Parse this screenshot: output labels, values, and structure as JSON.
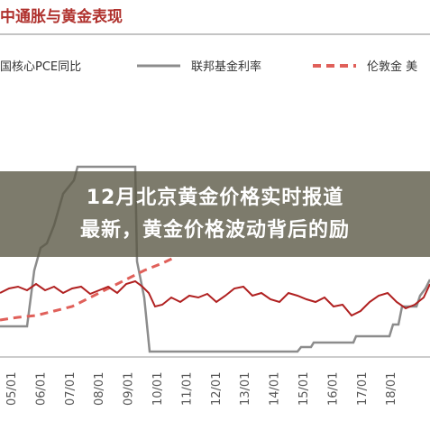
{
  "chart_image": {
    "title": "中通胀与黄金表现",
    "legend": [
      "国核心PCE同比",
      "联邦基金利率",
      "伦敦金 美"
    ],
    "x_labels": [
      "05/01",
      "06/01",
      "07/01",
      "08/01",
      "09/01",
      "10/01",
      "11/01",
      "12/01",
      "13/01",
      "14/01",
      "15/01",
      "16/01",
      "17/01",
      "18/01"
    ]
  },
  "headline": {
    "lines": [
      "12月北京黄金价格实时报道",
      "最新，黄金价格波动背后的励"
    ]
  }
}
